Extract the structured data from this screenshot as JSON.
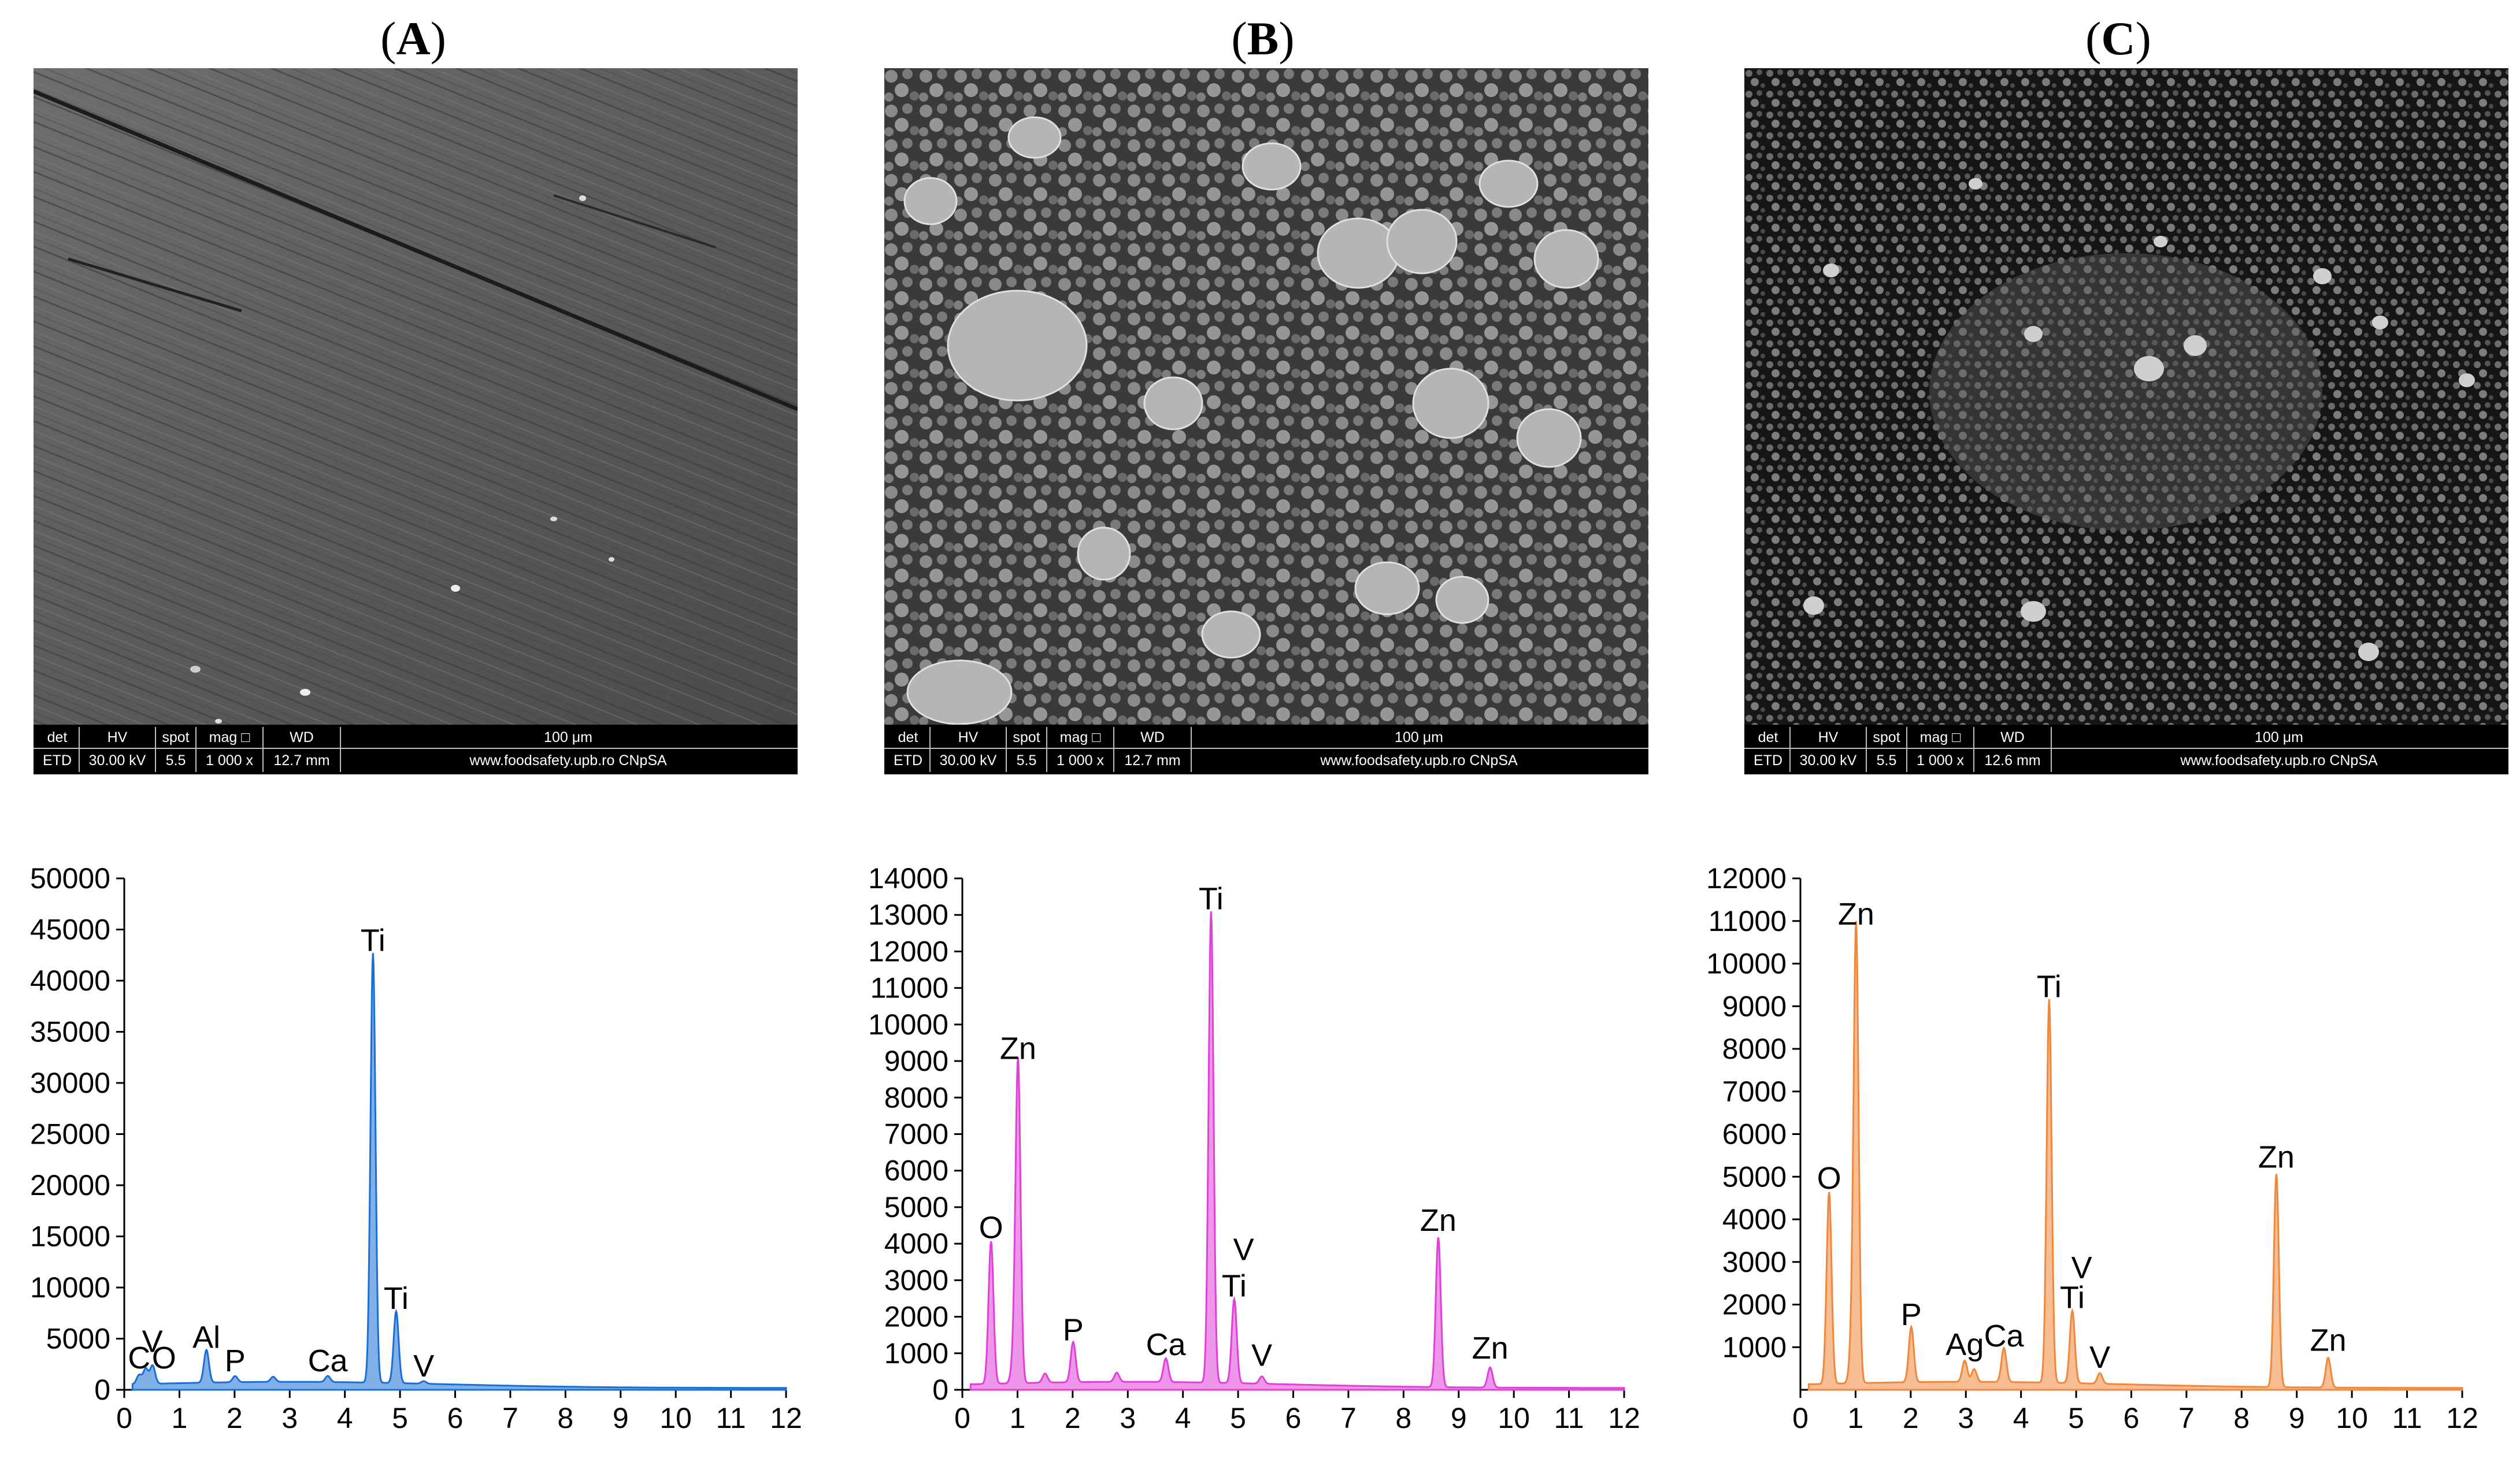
{
  "panels": [
    {
      "label": "A",
      "sem_bar": {
        "headers": [
          "det",
          "HV",
          "spot",
          "mag □",
          "WD"
        ],
        "values": [
          "ETD",
          "30.00 kV",
          "5.5",
          "1 000 x",
          "12.7 mm"
        ],
        "scale_label": "100 μm",
        "footer": "www.foodsafety.upb.ro CNpSA"
      },
      "spectrum_color": "#1a6fd6",
      "peak_labels": [
        {
          "text": "Ti",
          "x": 4.51,
          "y": 42000
        },
        {
          "text": "Ti",
          "x": 4.93,
          "y": 7000
        },
        {
          "text": "Al",
          "x": 1.49,
          "y": 3200
        },
        {
          "text": "P",
          "x": 2.01,
          "y": 900
        },
        {
          "text": "Ca",
          "x": 3.69,
          "y": 900
        },
        {
          "text": "V",
          "x": 5.43,
          "y": 400
        },
        {
          "text": "C",
          "x": 0.27,
          "y": 1200
        },
        {
          "text": "V",
          "x": 0.51,
          "y": 2800
        },
        {
          "text": "O",
          "x": 0.72,
          "y": 1200
        }
      ]
    },
    {
      "label": "B",
      "sem_bar": {
        "headers": [
          "det",
          "HV",
          "spot",
          "mag □",
          "WD"
        ],
        "values": [
          "ETD",
          "30.00 kV",
          "5.5",
          "1 000 x",
          "12.7 mm"
        ],
        "scale_label": "100 μm",
        "footer": "www.foodsafety.upb.ro CNpSA"
      },
      "spectrum_color": "#e040d8",
      "peak_labels": [
        {
          "text": "Ti",
          "x": 4.51,
          "y": 12900
        },
        {
          "text": "Zn",
          "x": 1.01,
          "y": 8800
        },
        {
          "text": "O",
          "x": 0.52,
          "y": 3900
        },
        {
          "text": "P",
          "x": 2.01,
          "y": 1100
        },
        {
          "text": "Ca",
          "x": 3.69,
          "y": 700
        },
        {
          "text": "V",
          "x": 5.1,
          "y": 3300
        },
        {
          "text": "Ti",
          "x": 4.93,
          "y": 2300
        },
        {
          "text": "V",
          "x": 5.43,
          "y": 400
        },
        {
          "text": "Zn",
          "x": 8.63,
          "y": 4100
        },
        {
          "text": "Zn",
          "x": 9.57,
          "y": 600
        }
      ]
    },
    {
      "label": "C",
      "sem_bar": {
        "headers": [
          "det",
          "HV",
          "spot",
          "mag □",
          "WD"
        ],
        "values": [
          "ETD",
          "30.00 kV",
          "5.5",
          "1 000 x",
          "12.6 mm"
        ],
        "scale_label": "100 μm",
        "footer": "www.foodsafety.upb.ro CNpSA"
      },
      "spectrum_color": "#f0873a",
      "peak_labels": [
        {
          "text": "Zn",
          "x": 1.01,
          "y": 10700
        },
        {
          "text": "Ti",
          "x": 4.51,
          "y": 9000
        },
        {
          "text": "O",
          "x": 0.52,
          "y": 4500
        },
        {
          "text": "P",
          "x": 2.01,
          "y": 1300
        },
        {
          "text": "Ag",
          "x": 2.98,
          "y": 600
        },
        {
          "text": "Ca",
          "x": 3.69,
          "y": 800
        },
        {
          "text": "V",
          "x": 5.1,
          "y": 2400
        },
        {
          "text": "Ti",
          "x": 4.93,
          "y": 1700
        },
        {
          "text": "V",
          "x": 5.43,
          "y": 300
        },
        {
          "text": "Zn",
          "x": 8.63,
          "y": 5000
        },
        {
          "text": "Zn",
          "x": 9.57,
          "y": 700
        }
      ]
    }
  ],
  "chart_data": [
    {
      "type": "area",
      "x_ticks": [
        0,
        1,
        2,
        3,
        4,
        5,
        6,
        7,
        8,
        9,
        10,
        11,
        12
      ],
      "y_ticks": [
        0,
        5000,
        10000,
        15000,
        20000,
        25000,
        30000,
        35000,
        40000,
        45000,
        50000
      ],
      "xlim": [
        0,
        12
      ],
      "ylim": [
        0,
        50000
      ],
      "peaks": [
        {
          "x": 0.27,
          "y": 900
        },
        {
          "x": 0.39,
          "y": 1500
        },
        {
          "x": 0.51,
          "y": 1100
        },
        {
          "x": 0.52,
          "y": 700
        },
        {
          "x": 1.49,
          "y": 3200
        },
        {
          "x": 2.01,
          "y": 600
        },
        {
          "x": 2.7,
          "y": 500
        },
        {
          "x": 3.69,
          "y": 600
        },
        {
          "x": 4.51,
          "y": 42000
        },
        {
          "x": 4.93,
          "y": 7000
        },
        {
          "x": 5.43,
          "y": 250
        }
      ]
    },
    {
      "type": "area",
      "x_ticks": [
        0,
        1,
        2,
        3,
        4,
        5,
        6,
        7,
        8,
        9,
        10,
        11,
        12
      ],
      "y_ticks": [
        0,
        1000,
        2000,
        3000,
        4000,
        5000,
        6000,
        7000,
        8000,
        9000,
        10000,
        11000,
        12000,
        13000,
        14000
      ],
      "xlim": [
        0,
        12
      ],
      "ylim": [
        0,
        14000
      ],
      "peaks": [
        {
          "x": 0.52,
          "y": 3900
        },
        {
          "x": 0.93,
          "y": 600
        },
        {
          "x": 1.01,
          "y": 8800
        },
        {
          "x": 1.5,
          "y": 250
        },
        {
          "x": 2.01,
          "y": 1100
        },
        {
          "x": 2.8,
          "y": 250
        },
        {
          "x": 3.69,
          "y": 650
        },
        {
          "x": 4.51,
          "y": 12900
        },
        {
          "x": 4.93,
          "y": 2300
        },
        {
          "x": 5.43,
          "y": 200
        },
        {
          "x": 8.63,
          "y": 4100
        },
        {
          "x": 9.57,
          "y": 550
        }
      ]
    },
    {
      "type": "area",
      "x_ticks": [
        0,
        1,
        2,
        3,
        4,
        5,
        6,
        7,
        8,
        9,
        10,
        11,
        12
      ],
      "y_ticks": [
        1000,
        2000,
        3000,
        4000,
        5000,
        6000,
        7000,
        8000,
        9000,
        10000,
        11000,
        12000
      ],
      "xlim": [
        0,
        12
      ],
      "ylim": [
        0,
        12000
      ],
      "peaks": [
        {
          "x": 0.52,
          "y": 4500
        },
        {
          "x": 0.93,
          "y": 700
        },
        {
          "x": 1.01,
          "y": 10700
        },
        {
          "x": 2.01,
          "y": 1300
        },
        {
          "x": 2.98,
          "y": 500
        },
        {
          "x": 3.15,
          "y": 300
        },
        {
          "x": 3.69,
          "y": 800
        },
        {
          "x": 4.51,
          "y": 9000
        },
        {
          "x": 4.93,
          "y": 1700
        },
        {
          "x": 5.43,
          "y": 250
        },
        {
          "x": 8.63,
          "y": 5000
        },
        {
          "x": 9.57,
          "y": 700
        }
      ]
    }
  ]
}
